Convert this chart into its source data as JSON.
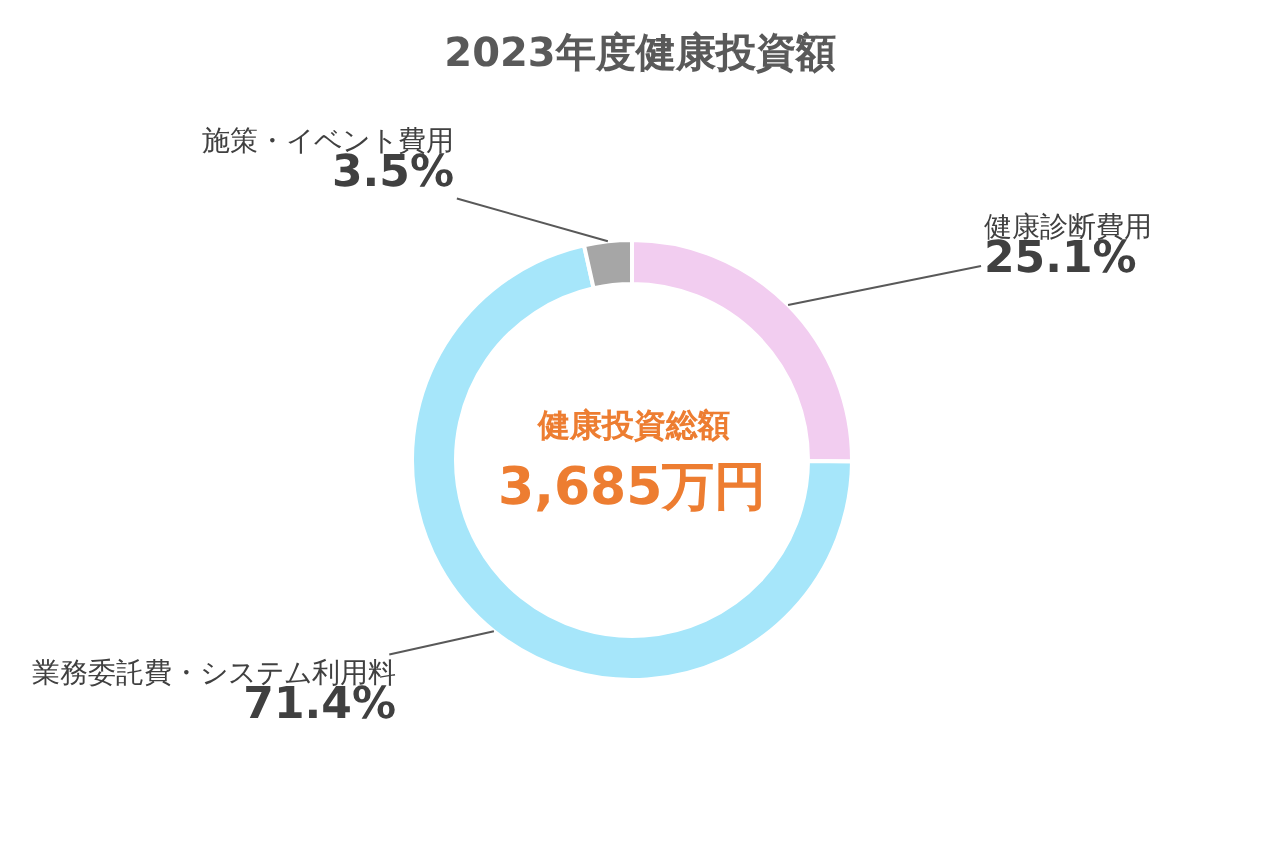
{
  "chart_data": {
    "type": "donut",
    "title": "2023年度健康投資額",
    "categories": [
      "健康診断費用",
      "業務委託費・システム利用料",
      "施策・イベント費用"
    ],
    "values": [
      25.1,
      71.4,
      3.5
    ],
    "value_labels": [
      "25.1%",
      "71.4%",
      "3.5%"
    ],
    "colors": [
      "#f2cdf0",
      "#a6e6fa",
      "#a6a6a6"
    ],
    "annotations": [
      "健康投資総額",
      "3,685万円"
    ],
    "legend": false
  }
}
